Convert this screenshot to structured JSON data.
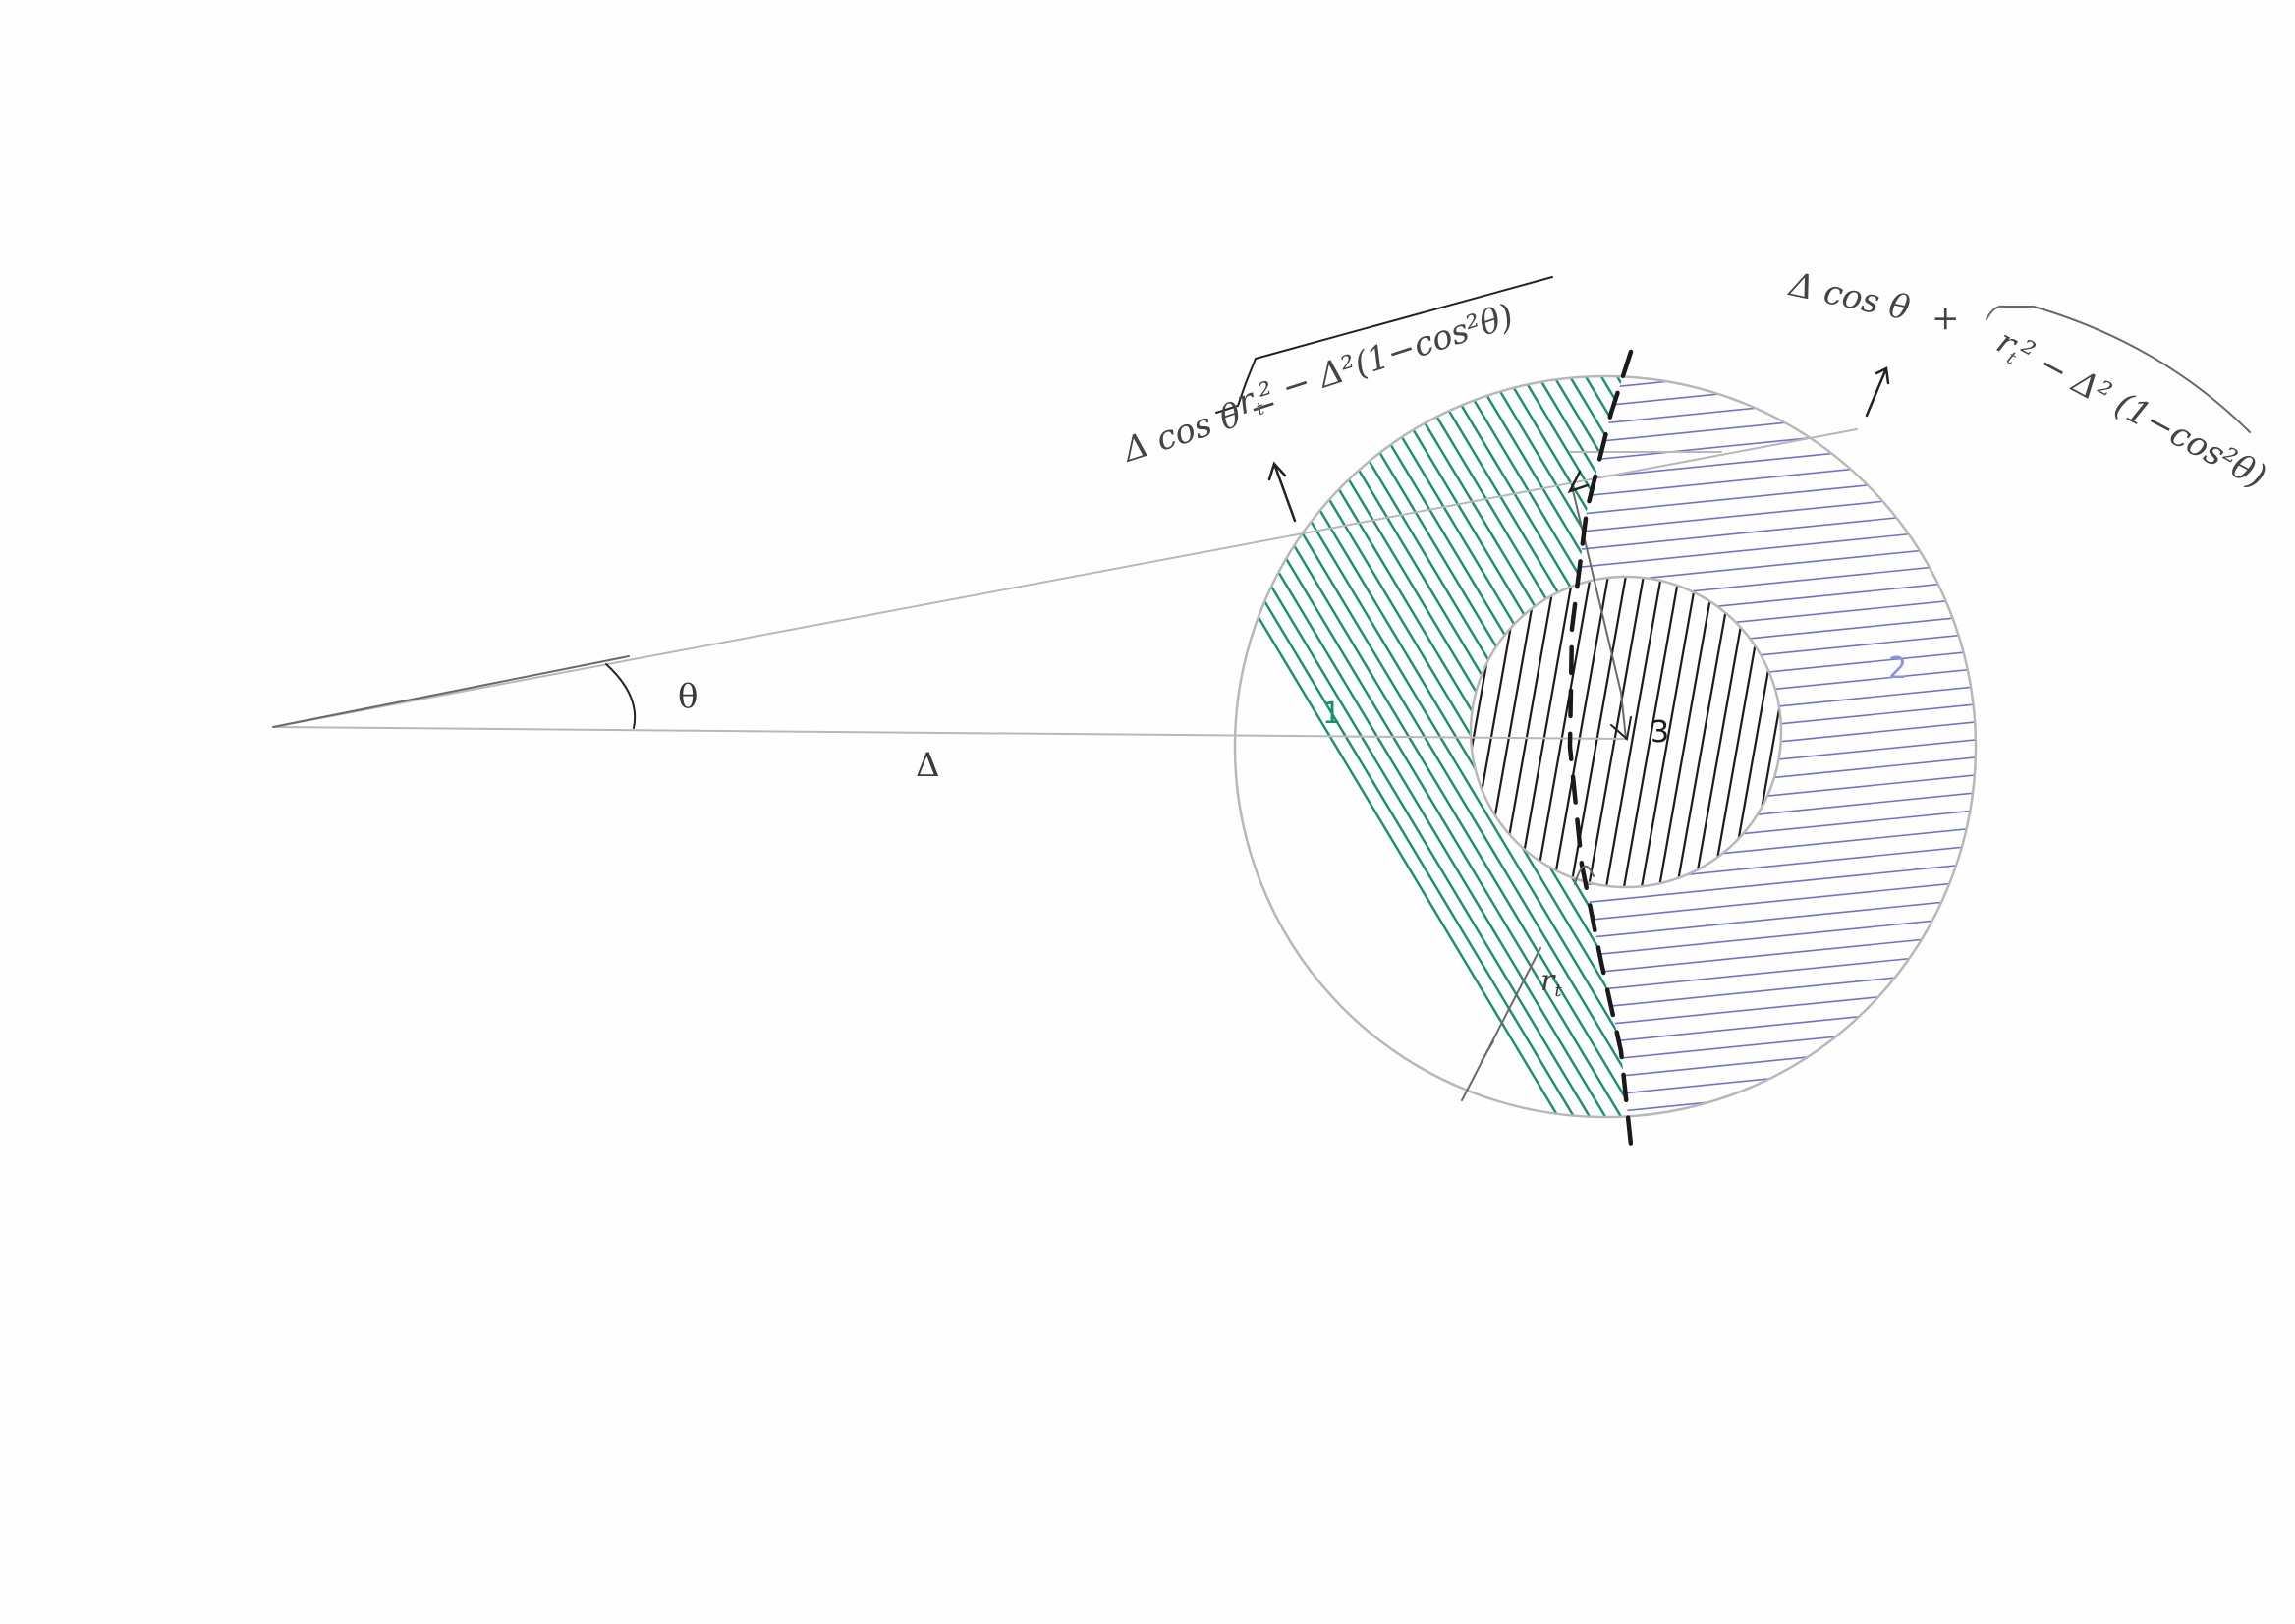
{
  "labels": {
    "theta": "θ",
    "delta": "Δ",
    "region_1": "1",
    "region_2": "2",
    "region_3": "3",
    "r_t": "r",
    "r_t_sub": "t",
    "formula_minus_head": "Δ cos θ  −",
    "formula_minus_root": "r",
    "formula_minus_root_sub": "t",
    "formula_minus_root_rest": "² − Δ²(1−cos²θ)",
    "formula_plus_head": "Δ cos θ",
    "formula_plus_op": "+",
    "formula_plus_root": "r",
    "formula_plus_root_sub": "t",
    "formula_plus_root_rest": "² − Δ² (1−cos²θ)"
  },
  "colors": {
    "region_1_hatch": "#14916f",
    "region_2_hatch": "#6b73d6",
    "region_3_hatch": "#1c1c1c",
    "pencil": "#b8b8b8",
    "ink": "#222222",
    "region_2_label": "#8a93e0",
    "region_1_label": "#14916f"
  }
}
